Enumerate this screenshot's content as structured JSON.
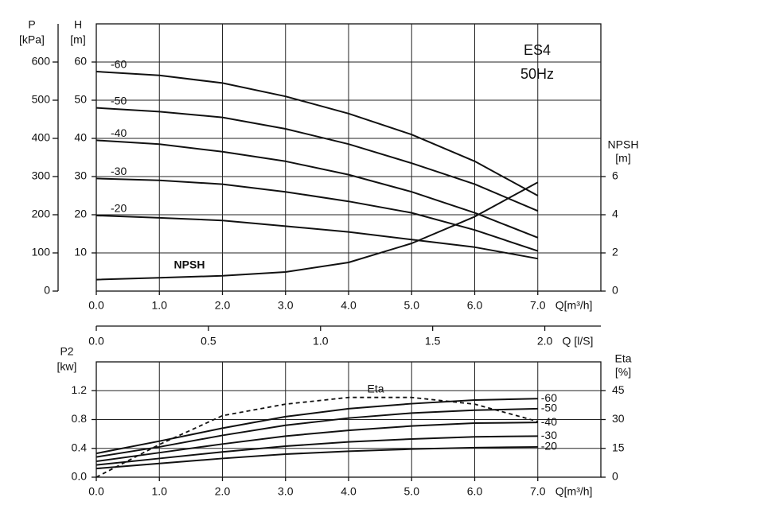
{
  "chart_data": [
    {
      "type": "line",
      "title": "ES4",
      "subtitle": "50Hz",
      "x": [
        0,
        1,
        2,
        3,
        4,
        5,
        6,
        7
      ],
      "x_label": "Q[m³/h]",
      "xlim": [
        0,
        8
      ],
      "xticks": [
        {
          "value": 0,
          "label": "0.0"
        },
        {
          "value": 1,
          "label": "1.0"
        },
        {
          "value": 2,
          "label": "2.0"
        },
        {
          "value": 3,
          "label": "3.0"
        },
        {
          "value": 4,
          "label": "4.0"
        },
        {
          "value": 5,
          "label": "5.0"
        },
        {
          "value": 6,
          "label": "6.0"
        },
        {
          "value": 7,
          "label": "7.0"
        }
      ],
      "y_label": [
        "H",
        "[m]"
      ],
      "ylim": [
        0,
        70
      ],
      "yticks": [
        10,
        20,
        30,
        40,
        50,
        60
      ],
      "y2_label": [
        "NPSH",
        "[m]"
      ],
      "y2lim": [
        0,
        14
      ],
      "y2ticks": [
        0,
        2,
        4,
        6
      ],
      "p_axis": {
        "label": [
          "P",
          "[kPa]"
        ],
        "lim": [
          0,
          700
        ],
        "ticks": [
          0,
          100,
          200,
          300,
          400,
          500,
          600
        ]
      },
      "flow_axis": {
        "label": "Q [l/S]",
        "lim": [
          0,
          2.25
        ],
        "ticks": [
          {
            "value": 0,
            "label": "0.0"
          },
          0.5,
          {
            "value": 1,
            "label": "1.0"
          },
          1.5,
          {
            "value": 2,
            "label": "2.0"
          }
        ]
      },
      "grid": true,
      "series": [
        {
          "name": "-60",
          "color": "#111111",
          "values": [
            57.5,
            56.5,
            54.5,
            51,
            46.5,
            41,
            34,
            25
          ]
        },
        {
          "name": "-50",
          "color": "#111111",
          "values": [
            48,
            47,
            45.5,
            42.5,
            38.5,
            33.5,
            28,
            21
          ]
        },
        {
          "name": "-40",
          "color": "#111111",
          "values": [
            39.5,
            38.5,
            36.5,
            34,
            30.5,
            26,
            20.5,
            14
          ]
        },
        {
          "name": "-30",
          "color": "#111111",
          "values": [
            29.5,
            29,
            28,
            26,
            23.5,
            20.5,
            16,
            10.5
          ]
        },
        {
          "name": "-20",
          "color": "#111111",
          "values": [
            19.8,
            19.2,
            18.5,
            17,
            15.5,
            13.5,
            11.5,
            8.5
          ]
        },
        {
          "name": "NPSH",
          "color": "#111111",
          "axis": "y2",
          "values": [
            0.6,
            0.7,
            0.8,
            1.0,
            1.5,
            2.5,
            3.9,
            5.7
          ]
        }
      ]
    },
    {
      "type": "line",
      "x": [
        0,
        1,
        2,
        3,
        4,
        5,
        6,
        7
      ],
      "x_label": "Q[m³/h]",
      "xlim": [
        0,
        8
      ],
      "xticks": [
        {
          "value": 0,
          "label": "0.0"
        },
        {
          "value": 1,
          "label": "1.0"
        },
        {
          "value": 2,
          "label": "2.0"
        },
        {
          "value": 3,
          "label": "3.0"
        },
        {
          "value": 4,
          "label": "4.0"
        },
        {
          "value": 5,
          "label": "5.0"
        },
        {
          "value": 6,
          "label": "6.0"
        },
        {
          "value": 7,
          "label": "7.0"
        }
      ],
      "y_label": [
        "P2",
        "[kw]"
      ],
      "ylim": [
        0,
        1.6
      ],
      "yticks": [
        {
          "value": 0,
          "label": "0.0"
        },
        0.4,
        0.8,
        1.2
      ],
      "y2_label": [
        "Eta",
        "[%]"
      ],
      "y2lim": [
        0,
        60
      ],
      "y2ticks": [
        0,
        15,
        30,
        45
      ],
      "grid": true,
      "series": [
        {
          "name": "-60",
          "color": "#111111",
          "values": [
            0.33,
            0.5,
            0.68,
            0.84,
            0.95,
            1.02,
            1.07,
            1.09
          ]
        },
        {
          "name": "-50",
          "color": "#111111",
          "values": [
            0.28,
            0.42,
            0.58,
            0.72,
            0.82,
            0.89,
            0.93,
            0.95
          ]
        },
        {
          "name": "-40",
          "color": "#111111",
          "values": [
            0.22,
            0.34,
            0.46,
            0.57,
            0.65,
            0.71,
            0.75,
            0.76
          ]
        },
        {
          "name": "-30",
          "color": "#111111",
          "values": [
            0.17,
            0.26,
            0.35,
            0.43,
            0.49,
            0.53,
            0.56,
            0.57
          ]
        },
        {
          "name": "-20",
          "color": "#111111",
          "values": [
            0.12,
            0.19,
            0.26,
            0.32,
            0.36,
            0.39,
            0.41,
            0.42
          ]
        },
        {
          "name": "Eta",
          "color": "#111111",
          "axis": "y2",
          "dash": true,
          "values": [
            0,
            17,
            32,
            38,
            41.5,
            41.5,
            38,
            29
          ]
        }
      ]
    }
  ]
}
